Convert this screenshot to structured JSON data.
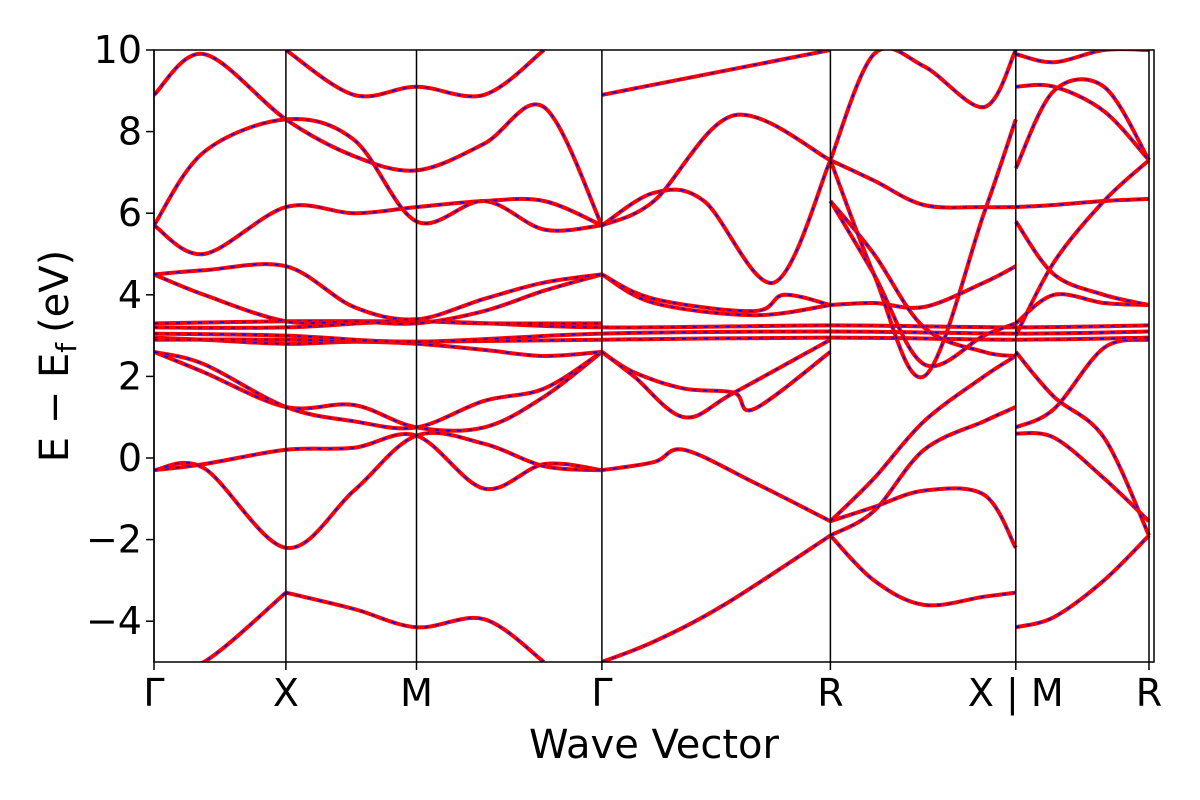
{
  "chart_data": {
    "type": "line",
    "title": "",
    "xlabel": "Wave Vector",
    "ylabel": "E − E",
    "ylabel_subscript": "f",
    "ylabel_unit": "(eV)",
    "ylim": [
      -5,
      10
    ],
    "y_ticks": [
      -4,
      -2,
      0,
      2,
      4,
      6,
      8,
      10
    ],
    "y_tick_labels": [
      "−4",
      "−2",
      "0",
      "2",
      "4",
      "6",
      "8",
      "10"
    ],
    "x_range": [
      0,
      1
    ],
    "k_points": [
      {
        "label": "Γ",
        "x": 0.0
      },
      {
        "label": "X",
        "x": 0.1319
      },
      {
        "label": "M",
        "x": 0.2625
      },
      {
        "label": "Γ",
        "x": 0.4479
      },
      {
        "label": "R",
        "x": 0.6764
      },
      {
        "label": "X | M",
        "x": 0.8618
      },
      {
        "label": "R",
        "x": 0.995
      }
    ],
    "grid": false,
    "legend": "none",
    "colors": {
      "band_primary": "#ff0000",
      "band_dashed": "#0000ff",
      "kline": "#000000"
    },
    "series": [
      {
        "x": [
          0,
          0.05,
          0.1319,
          0.2,
          0.2625,
          0.33,
          0.39,
          0.4479
        ],
        "values": [
          -0.3,
          -0.15,
          0.2,
          0.25,
          0.55,
          -0.75,
          -0.15,
          -0.3
        ]
      },
      {
        "x": [
          0.4479,
          0.5,
          0.53,
          0.6,
          0.6764
        ],
        "values": [
          -0.3,
          -0.1,
          0.2,
          -0.6,
          -1.55
        ]
      },
      {
        "x": [
          0,
          0.05,
          0.1319,
          0.2,
          0.2625,
          0.33,
          0.39,
          0.4479
        ],
        "values": [
          -0.3,
          -0.25,
          -2.2,
          -0.8,
          0.55,
          0.35,
          -0.2,
          -0.3
        ]
      },
      {
        "x": [
          0.4479,
          0.5,
          0.57,
          0.6764
        ],
        "values": [
          -5.0,
          -4.5,
          -3.6,
          -1.9
        ]
      },
      {
        "x": [
          0.6764,
          0.72,
          0.77,
          0.83,
          0.8618
        ],
        "values": [
          -1.9,
          -3.0,
          -3.6,
          -3.4,
          -3.3
        ]
      },
      {
        "x": [
          0.6764,
          0.72,
          0.77,
          0.83,
          0.8618
        ],
        "values": [
          -1.55,
          -1.2,
          -0.8,
          -0.9,
          -2.2
        ]
      },
      {
        "x": [
          0.6764,
          0.72,
          0.77,
          0.83,
          0.8618
        ],
        "values": [
          -1.9,
          -1.3,
          0.2,
          0.9,
          1.25
        ]
      },
      {
        "x": [
          0.6764,
          0.72,
          0.77,
          0.83,
          0.8618
        ],
        "values": [
          -1.55,
          -0.5,
          0.9,
          2.0,
          2.5
        ]
      },
      {
        "x": [
          0.8618,
          0.9,
          0.95,
          0.995
        ],
        "values": [
          -4.15,
          -3.9,
          -3.0,
          -1.9
        ]
      },
      {
        "x": [
          0.8618,
          0.9,
          0.95,
          0.995
        ],
        "values": [
          0.6,
          0.5,
          -0.5,
          -1.55
        ]
      },
      {
        "x": [
          0.8618,
          0.9,
          0.95,
          0.995
        ],
        "values": [
          0.75,
          1.2,
          2.7,
          2.9
        ]
      },
      {
        "x": [
          0.8618,
          0.9,
          0.95,
          0.995
        ],
        "values": [
          2.6,
          1.5,
          0.5,
          -1.9
        ]
      },
      {
        "x": [
          0,
          0.05,
          0.1319
        ],
        "values": [
          -5.2,
          -5.0,
          -3.3
        ]
      },
      {
        "x": [
          0.1319,
          0.2,
          0.2625,
          0.33,
          0.39
        ],
        "values": [
          -3.3,
          -3.7,
          -4.15,
          -3.95,
          -5.0
        ]
      },
      {
        "x": [
          0,
          0.05,
          0.1319,
          0.2,
          0.2625,
          0.33,
          0.39,
          0.4479
        ],
        "values": [
          2.6,
          2.1,
          1.25,
          1.3,
          0.75,
          0.75,
          1.5,
          2.6
        ]
      },
      {
        "x": [
          0,
          0.05,
          0.1319,
          0.2,
          0.2625,
          0.33,
          0.39,
          0.4479
        ],
        "values": [
          2.6,
          2.3,
          1.25,
          0.9,
          0.75,
          1.4,
          1.7,
          2.6
        ]
      },
      {
        "x": [
          0.4479,
          0.48,
          0.53,
          0.58,
          0.6,
          0.6764
        ],
        "values": [
          2.6,
          2.1,
          1.7,
          1.6,
          1.2,
          2.6
        ]
      },
      {
        "x": [
          0.4479,
          0.48,
          0.53,
          0.58,
          0.6764
        ],
        "values": [
          2.6,
          2.0,
          1.0,
          1.6,
          2.9
        ]
      },
      {
        "x": [
          0,
          0.05,
          0.1319,
          0.2,
          0.2625,
          0.33,
          0.39,
          0.4479
        ],
        "values": [
          2.95,
          2.9,
          2.8,
          2.85,
          2.8,
          2.65,
          2.5,
          2.6
        ]
      },
      {
        "x": [
          0,
          0.1319,
          0.2625,
          0.4479,
          0.6764,
          0.8618,
          0.995
        ],
        "values": [
          2.9,
          2.9,
          2.85,
          2.9,
          2.95,
          2.9,
          2.95
        ]
      },
      {
        "x": [
          0,
          0.1319,
          0.2625,
          0.4479,
          0.6764,
          0.8618,
          0.995
        ],
        "values": [
          3.05,
          3.0,
          2.85,
          3.05,
          3.1,
          3.05,
          3.1
        ]
      },
      {
        "x": [
          0,
          0.1319,
          0.2625,
          0.4479,
          0.6764,
          0.8618,
          0.995
        ],
        "values": [
          3.2,
          3.2,
          3.35,
          3.2,
          3.25,
          3.2,
          3.25
        ]
      },
      {
        "x": [
          0,
          0.1319,
          0.2625,
          0.33,
          0.4479
        ],
        "values": [
          3.3,
          3.35,
          3.35,
          3.3,
          3.3
        ]
      },
      {
        "x": [
          0,
          0.05,
          0.1319,
          0.2,
          0.2625,
          0.33,
          0.39,
          0.4479
        ],
        "values": [
          4.5,
          4.0,
          3.35,
          3.35,
          3.3,
          3.6,
          4.1,
          4.5
        ]
      },
      {
        "x": [
          0,
          0.05,
          0.1319,
          0.2,
          0.2625,
          0.33,
          0.39,
          0.4479
        ],
        "values": [
          4.5,
          4.6,
          4.7,
          3.7,
          3.4,
          3.9,
          4.3,
          4.5
        ]
      },
      {
        "x": [
          0.4479,
          0.5,
          0.6,
          0.6764
        ],
        "values": [
          4.5,
          3.8,
          3.5,
          3.75
        ]
      },
      {
        "x": [
          0.4479,
          0.5,
          0.6,
          0.63,
          0.6764
        ],
        "values": [
          4.5,
          3.9,
          3.6,
          4.0,
          3.75
        ]
      },
      {
        "x": [
          0.6764,
          0.72,
          0.77,
          0.83,
          0.8618
        ],
        "values": [
          3.75,
          3.8,
          3.7,
          4.3,
          4.7
        ]
      },
      {
        "x": [
          0.8618,
          0.9,
          0.95,
          0.995
        ],
        "values": [
          3.3,
          4.0,
          3.8,
          3.75
        ]
      },
      {
        "x": [
          0,
          0.05,
          0.1319,
          0.2,
          0.2625,
          0.33,
          0.39,
          0.4479
        ],
        "values": [
          5.7,
          5.0,
          6.15,
          6.0,
          6.15,
          6.3,
          6.3,
          5.7
        ]
      },
      {
        "x": [
          0,
          0.05,
          0.1319,
          0.2,
          0.2625,
          0.33,
          0.39,
          0.4479
        ],
        "values": [
          5.7,
          7.5,
          8.3,
          7.8,
          5.8,
          6.3,
          5.6,
          5.7
        ]
      },
      {
        "x": [
          0.4479,
          0.5,
          0.55,
          0.62,
          0.6764
        ],
        "values": [
          5.7,
          6.5,
          6.3,
          4.3,
          7.3
        ]
      },
      {
        "x": [
          0.4479,
          0.5,
          0.58,
          0.6764
        ],
        "values": [
          5.7,
          6.3,
          8.4,
          7.3
        ]
      },
      {
        "x": [
          0.6764,
          0.72,
          0.77,
          0.83,
          0.8618
        ],
        "values": [
          7.3,
          6.8,
          6.2,
          6.15,
          6.15
        ]
      },
      {
        "x": [
          0.6764,
          0.72,
          0.77,
          0.83,
          0.8618
        ],
        "values": [
          6.3,
          5.0,
          3.2,
          2.6,
          2.5
        ]
      },
      {
        "x": [
          0.6764,
          0.72,
          0.77,
          0.83,
          0.8618
        ],
        "values": [
          6.3,
          4.5,
          2.3,
          3.0,
          3.3
        ]
      },
      {
        "x": [
          0.8618,
          0.9,
          0.95,
          0.995
        ],
        "values": [
          5.8,
          4.5,
          4.0,
          3.75
        ]
      },
      {
        "x": [
          0.8618,
          0.9,
          0.95,
          0.995
        ],
        "values": [
          6.15,
          6.2,
          6.3,
          6.35
        ]
      },
      {
        "x": [
          0.8618,
          0.9,
          0.95,
          0.995
        ],
        "values": [
          3.0,
          4.8,
          6.3,
          7.3
        ]
      },
      {
        "x": [
          0.8618,
          0.9,
          0.95,
          0.995
        ],
        "values": [
          7.1,
          9.0,
          9.1,
          7.3
        ]
      },
      {
        "x": [
          0.8618,
          0.9,
          0.95,
          0.995
        ],
        "values": [
          9.1,
          9.1,
          8.5,
          7.3
        ]
      },
      {
        "x": [
          0,
          0.05,
          0.1319,
          0.2,
          0.2625,
          0.33,
          0.39,
          0.4479
        ],
        "values": [
          8.9,
          9.9,
          8.3,
          7.4,
          7.05,
          7.7,
          8.6,
          5.7
        ]
      },
      {
        "x": [
          0.1319,
          0.2,
          0.2625,
          0.33,
          0.39
        ],
        "values": [
          10.0,
          8.9,
          9.1,
          8.9,
          10.0
        ]
      },
      {
        "x": [
          0.4479,
          0.6764
        ],
        "values": [
          8.9,
          10.0
        ]
      },
      {
        "x": [
          0.6764,
          0.72,
          0.77,
          0.83,
          0.8618
        ],
        "values": [
          7.3,
          9.9,
          9.6,
          8.6,
          10.0
        ]
      },
      {
        "x": [
          0.6764,
          0.72,
          0.77,
          0.83,
          0.8618
        ],
        "values": [
          7.3,
          4.5,
          2.0,
          6.0,
          8.3
        ]
      },
      {
        "x": [
          0.8618,
          0.9,
          0.95,
          0.995
        ],
        "values": [
          9.9,
          9.7,
          10.0,
          10.0
        ]
      }
    ]
  }
}
